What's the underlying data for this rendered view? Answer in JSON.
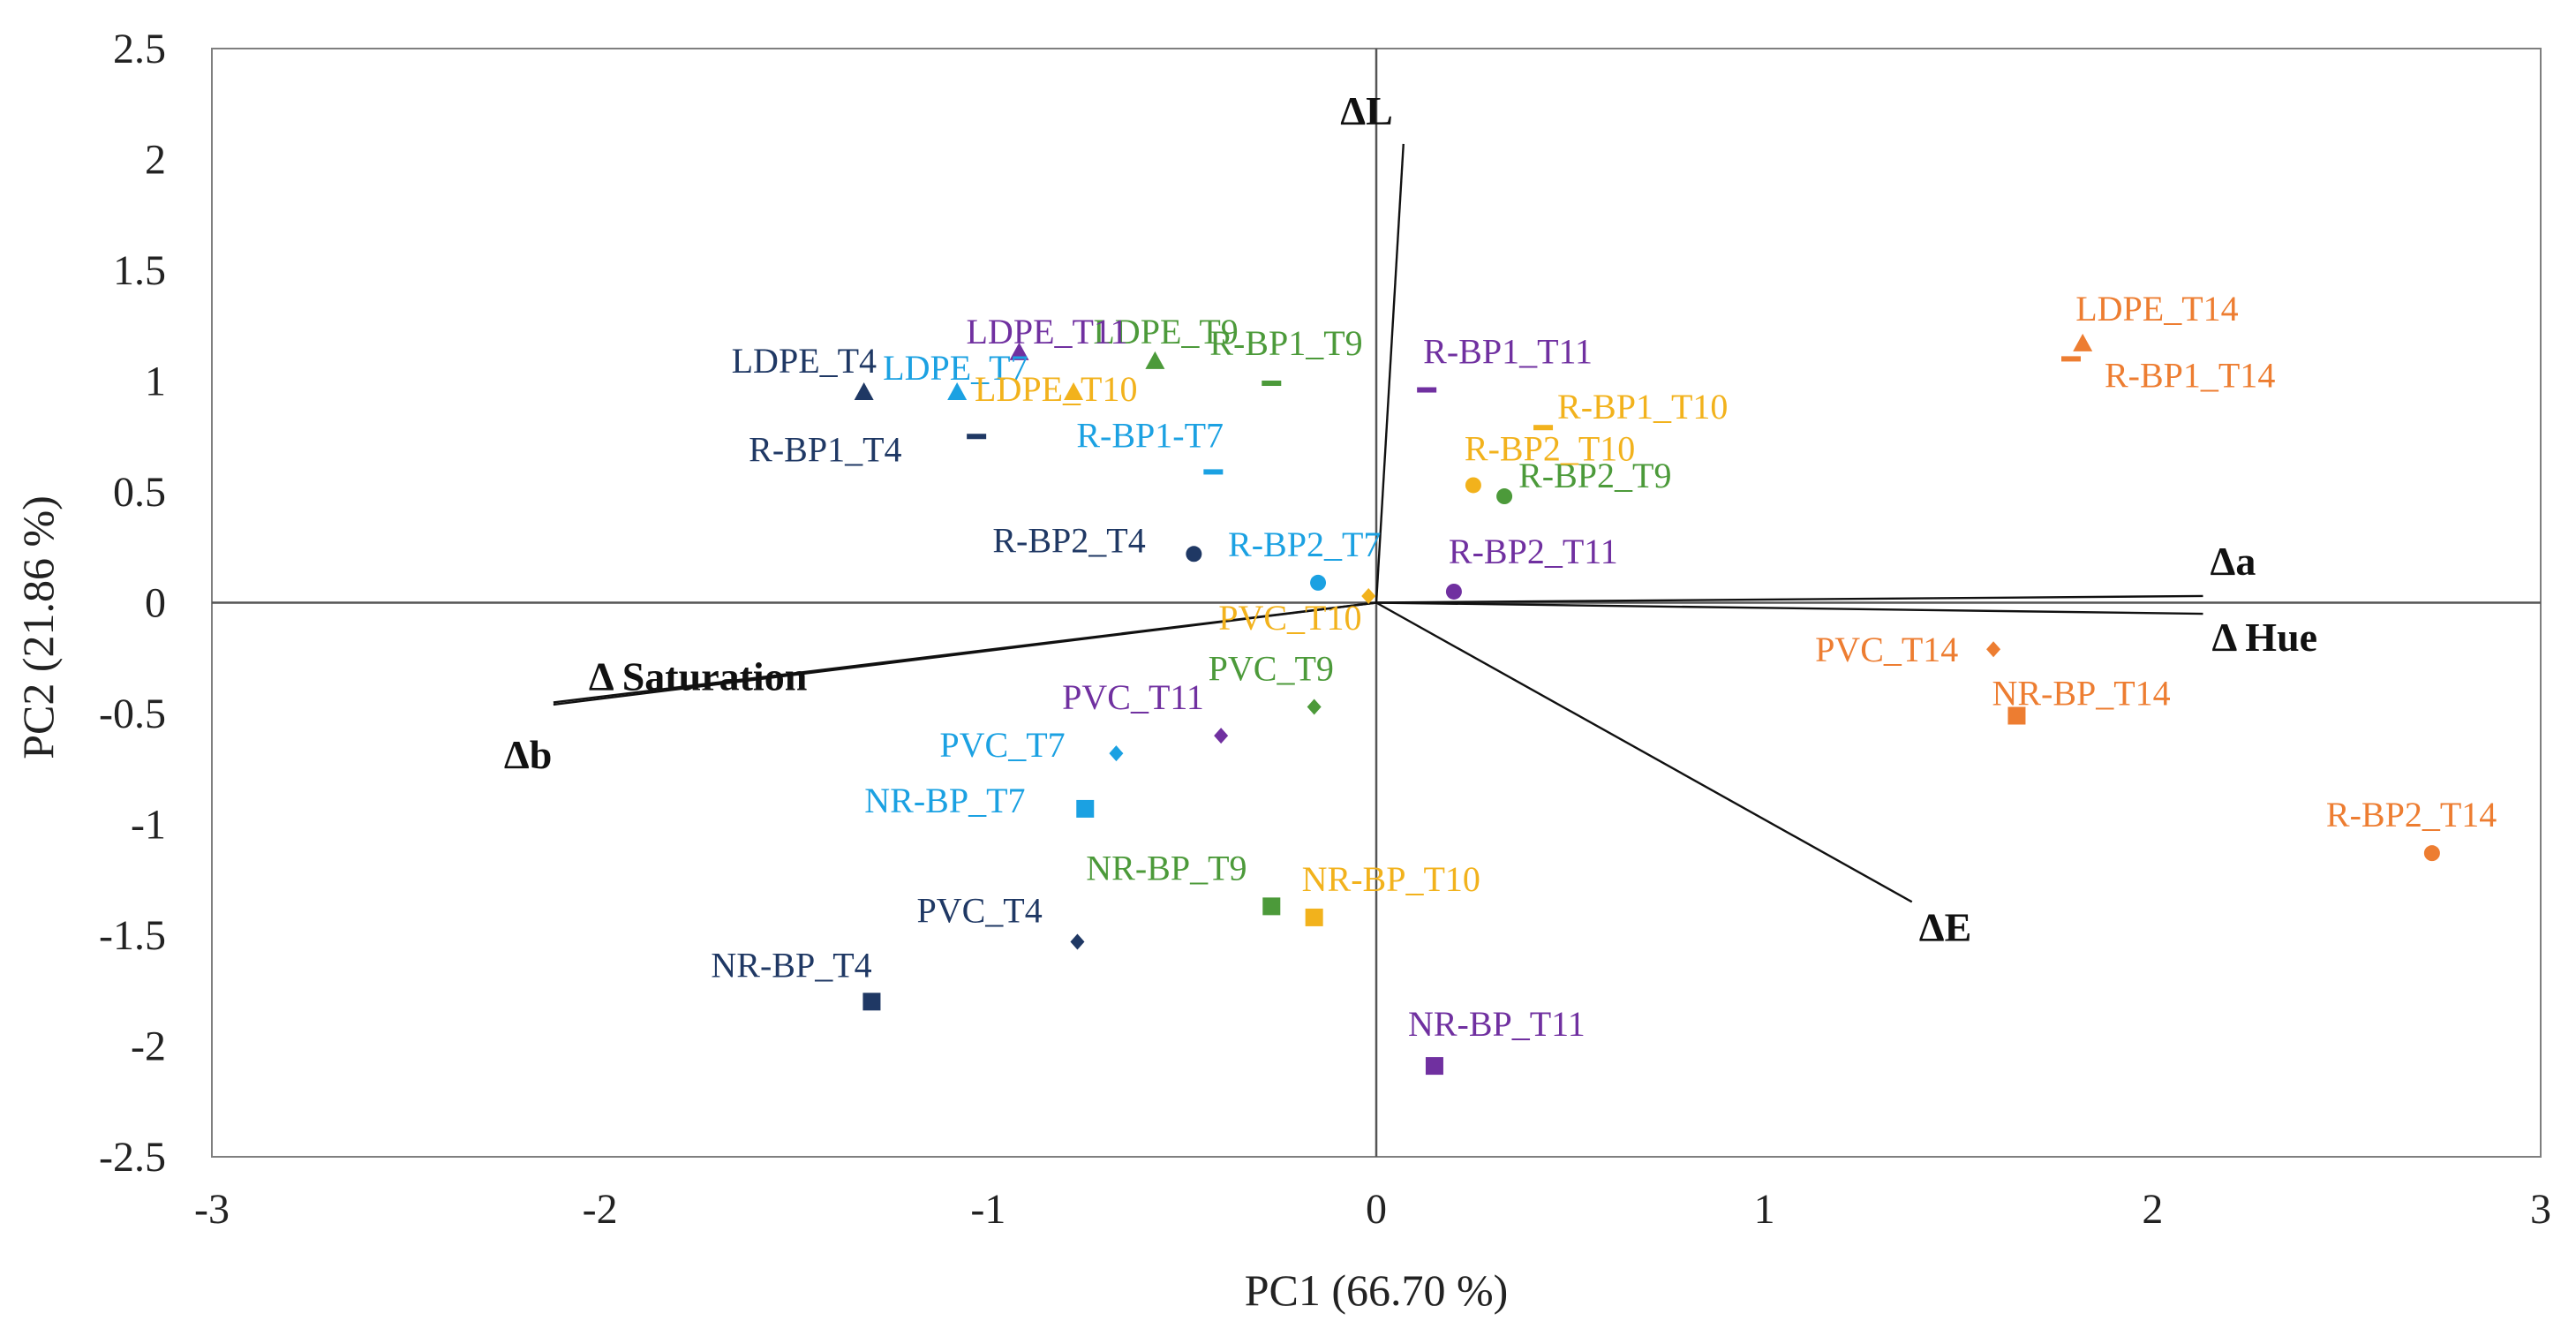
{
  "chart_data": {
    "type": "scatter",
    "subtype": "pca-biplot",
    "title": "",
    "xlabel": "PC1 (66.70  %)",
    "ylabel": "PC2 (21.86  %)",
    "xlim": [
      -3,
      3
    ],
    "ylim": [
      -2.5,
      2.5
    ],
    "xticks": [
      "-3",
      "-2",
      "-1",
      "0",
      "1",
      "2",
      "3"
    ],
    "yticks": [
      "2.5",
      "2",
      "1.5",
      "1",
      "0.5",
      "0",
      "-0.5",
      "-1",
      "-1.5",
      "-2",
      "-2.5"
    ],
    "grid": false,
    "colors": {
      "T4": "#1f3864",
      "T7": "#1ba1e2",
      "T9": "#4c9a3a",
      "T10": "#f2b21c",
      "T11": "#7030a0",
      "T14": "#ed7d31",
      "vectors": "#111111",
      "axes": "#555555"
    },
    "points": [
      {
        "label": "LDPE_T4",
        "x": -1.32,
        "y": 0.95,
        "marker": "triangle",
        "group": "T4"
      },
      {
        "label": "R-BP1_T4",
        "x": -1.03,
        "y": 0.75,
        "marker": "dash",
        "group": "T4"
      },
      {
        "label": "R-BP2_T4",
        "x": -0.47,
        "y": 0.22,
        "marker": "circle",
        "group": "T4"
      },
      {
        "label": "PVC_T4",
        "x": -0.77,
        "y": -1.53,
        "marker": "diamond",
        "group": "T4"
      },
      {
        "label": "NR-BP_T4",
        "x": -1.3,
        "y": -1.8,
        "marker": "square",
        "group": "T4"
      },
      {
        "label": "LDPE_T7",
        "x": -1.08,
        "y": 0.95,
        "marker": "triangle",
        "group": "T7"
      },
      {
        "label": "R-BP1-T7",
        "x": -0.42,
        "y": 0.59,
        "marker": "dash",
        "group": "T7"
      },
      {
        "label": "R-BP2_T7",
        "x": -0.15,
        "y": 0.09,
        "marker": "circle",
        "group": "T7"
      },
      {
        "label": "PVC_T7",
        "x": -0.67,
        "y": -0.68,
        "marker": "diamond",
        "group": "T7"
      },
      {
        "label": "NR-BP_T7",
        "x": -0.75,
        "y": -0.93,
        "marker": "square",
        "group": "T7"
      },
      {
        "label": "LDPE_T9",
        "x": -0.57,
        "y": 1.09,
        "marker": "triangle",
        "group": "T9"
      },
      {
        "label": "R-BP1_T9",
        "x": -0.27,
        "y": 0.99,
        "marker": "dash",
        "group": "T9"
      },
      {
        "label": "R-BP2_T9",
        "x": 0.33,
        "y": 0.48,
        "marker": "circle",
        "group": "T9"
      },
      {
        "label": "PVC_T9",
        "x": -0.16,
        "y": -0.47,
        "marker": "diamond",
        "group": "T9"
      },
      {
        "label": "NR-BP_T9",
        "x": -0.27,
        "y": -1.37,
        "marker": "square",
        "group": "T9"
      },
      {
        "label": "LDPE_T10",
        "x": -0.78,
        "y": 0.95,
        "marker": "triangle",
        "group": "T10"
      },
      {
        "label": "R-BP1_T10",
        "x": 0.43,
        "y": 0.79,
        "marker": "dash",
        "group": "T10"
      },
      {
        "label": "R-BP2_T10",
        "x": 0.25,
        "y": 0.53,
        "marker": "circle",
        "group": "T10"
      },
      {
        "label": "PVC_T10",
        "x": -0.02,
        "y": 0.03,
        "marker": "diamond",
        "group": "T10"
      },
      {
        "label": "NR-BP_T10",
        "x": -0.16,
        "y": -1.42,
        "marker": "square",
        "group": "T10"
      },
      {
        "label": "LDPE_T11",
        "x": -0.92,
        "y": 1.13,
        "marker": "triangle",
        "group": "T11"
      },
      {
        "label": "R-BP1_T11",
        "x": 0.13,
        "y": 0.96,
        "marker": "dash",
        "group": "T11"
      },
      {
        "label": "R-BP2_T11",
        "x": 0.2,
        "y": 0.05,
        "marker": "circle",
        "group": "T11"
      },
      {
        "label": "PVC_T11",
        "x": -0.4,
        "y": -0.6,
        "marker": "diamond",
        "group": "T11"
      },
      {
        "label": "NR-BP_T11",
        "x": 0.15,
        "y": -2.09,
        "marker": "square",
        "group": "T11"
      },
      {
        "label": "LDPE_T14",
        "x": 1.82,
        "y": 1.17,
        "marker": "triangle",
        "group": "T14"
      },
      {
        "label": "R-BP1_T14",
        "x": 1.79,
        "y": 1.1,
        "marker": "dash",
        "group": "T14"
      },
      {
        "label": "R-BP2_T14",
        "x": 2.72,
        "y": -1.13,
        "marker": "circle",
        "group": "T14"
      },
      {
        "label": "PVC_T14",
        "x": 1.59,
        "y": -0.21,
        "marker": "diamond",
        "group": "T14"
      },
      {
        "label": "NR-BP_T14",
        "x": 1.65,
        "y": -0.51,
        "marker": "square",
        "group": "T14"
      }
    ],
    "vectors": [
      {
        "label": "ΔL",
        "x": 0.07,
        "y": 2.07
      },
      {
        "label": "Δa",
        "x": 2.13,
        "y": 0.03
      },
      {
        "label": "Δ Hue",
        "x": 2.13,
        "y": -0.05
      },
      {
        "label": "ΔE",
        "x": 1.38,
        "y": -1.35
      },
      {
        "label": "Δ Saturation",
        "x": -2.12,
        "y": -0.45
      },
      {
        "label": "Δb",
        "x": -2.12,
        "y": -0.46
      }
    ]
  }
}
